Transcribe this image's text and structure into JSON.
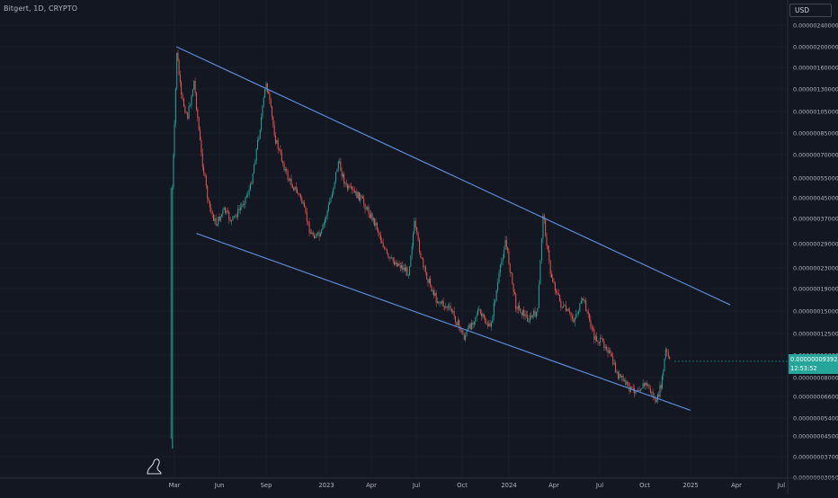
{
  "header": {
    "symbol_label": "Bitgert, 1D, CRYPTO",
    "currency_button": "USD"
  },
  "current_price": {
    "value": "0.000000093927",
    "countdown": "12:53:52",
    "color": "#26a69a"
  },
  "colors": {
    "background": "#131722",
    "up_candle": "#26a69a",
    "down_candle": "#ef5350",
    "trendline": "#5b8bd4",
    "grid": "#1e222d"
  },
  "chart_data": {
    "type": "candlestick",
    "title": "Bitgert, 1D, CRYPTO",
    "x_ticks": [
      "Mar",
      "Jun",
      "Sep",
      "2023",
      "Apr",
      "Jul",
      "Oct",
      "2024",
      "Apr",
      "Jul",
      "Oct",
      "2025",
      "Apr",
      "Jul"
    ],
    "y_ticks": [
      "0.000002400000",
      "0.000002000000",
      "0.000001600000",
      "0.000001300000",
      "0.000001050000",
      "0.000000850000",
      "0.000000700000",
      "0.000000550000",
      "0.000000450000",
      "0.000000370000",
      "0.000000290000",
      "0.000000230000",
      "0.000000190000",
      "0.000000150000",
      "0.000000125000",
      "0.000000100000",
      "0.000000080000",
      "0.000000066000",
      "0.000000054000",
      "0.000000045000",
      "0.000000037000",
      "0.000000030500"
    ],
    "y_scale": "log",
    "close_series": [
      {
        "x": "2022-02-22",
        "y": 4e-08
      },
      {
        "x": "2022-02-25",
        "y": 5e-07
      },
      {
        "x": "2022-03-01",
        "y": 9e-07
      },
      {
        "x": "2022-03-06",
        "y": 1.9e-06
      },
      {
        "x": "2022-03-15",
        "y": 1.2e-06
      },
      {
        "x": "2022-03-28",
        "y": 1e-06
      },
      {
        "x": "2022-04-10",
        "y": 1.4e-06
      },
      {
        "x": "2022-04-25",
        "y": 7e-07
      },
      {
        "x": "2022-05-10",
        "y": 4.2e-07
      },
      {
        "x": "2022-05-25",
        "y": 3.5e-07
      },
      {
        "x": "2022-06-10",
        "y": 4e-07
      },
      {
        "x": "2022-06-25",
        "y": 3.6e-07
      },
      {
        "x": "2022-07-10",
        "y": 4e-07
      },
      {
        "x": "2022-08-01",
        "y": 5e-07
      },
      {
        "x": "2022-08-20",
        "y": 9e-07
      },
      {
        "x": "2022-09-01",
        "y": 1.4e-06
      },
      {
        "x": "2022-09-20",
        "y": 8e-07
      },
      {
        "x": "2022-10-15",
        "y": 5.5e-07
      },
      {
        "x": "2022-11-10",
        "y": 4.5e-07
      },
      {
        "x": "2022-11-30",
        "y": 3.2e-07
      },
      {
        "x": "2022-12-20",
        "y": 3.1e-07
      },
      {
        "x": "2023-01-10",
        "y": 4.5e-07
      },
      {
        "x": "2023-01-25",
        "y": 6.5e-07
      },
      {
        "x": "2023-02-10",
        "y": 5e-07
      },
      {
        "x": "2023-03-10",
        "y": 4.5e-07
      },
      {
        "x": "2023-04-10",
        "y": 3.5e-07
      },
      {
        "x": "2023-05-05",
        "y": 2.5e-07
      },
      {
        "x": "2023-05-25",
        "y": 2.4e-07
      },
      {
        "x": "2023-06-15",
        "y": 2.2e-07
      },
      {
        "x": "2023-06-27",
        "y": 3.5e-07
      },
      {
        "x": "2023-07-15",
        "y": 2.3e-07
      },
      {
        "x": "2023-08-10",
        "y": 1.7e-07
      },
      {
        "x": "2023-09-10",
        "y": 1.5e-07
      },
      {
        "x": "2023-10-05",
        "y": 1.2e-07
      },
      {
        "x": "2023-11-01",
        "y": 1.5e-07
      },
      {
        "x": "2023-11-25",
        "y": 1.3e-07
      },
      {
        "x": "2023-12-10",
        "y": 2e-07
      },
      {
        "x": "2023-12-25",
        "y": 3e-07
      },
      {
        "x": "2024-01-15",
        "y": 1.6e-07
      },
      {
        "x": "2024-02-10",
        "y": 1.4e-07
      },
      {
        "x": "2024-02-28",
        "y": 1.5e-07
      },
      {
        "x": "2024-03-10",
        "y": 3.9e-07
      },
      {
        "x": "2024-03-25",
        "y": 2.2e-07
      },
      {
        "x": "2024-04-15",
        "y": 1.6e-07
      },
      {
        "x": "2024-05-10",
        "y": 1.4e-07
      },
      {
        "x": "2024-05-30",
        "y": 1.7e-07
      },
      {
        "x": "2024-06-20",
        "y": 1.2e-07
      },
      {
        "x": "2024-07-15",
        "y": 1.1e-07
      },
      {
        "x": "2024-08-05",
        "y": 8.3e-08
      },
      {
        "x": "2024-09-05",
        "y": 7e-08
      },
      {
        "x": "2024-10-05",
        "y": 7.5e-08
      },
      {
        "x": "2024-10-25",
        "y": 6.2e-08
      },
      {
        "x": "2024-11-05",
        "y": 7.8e-08
      },
      {
        "x": "2024-11-12",
        "y": 1.05e-07
      },
      {
        "x": "2024-11-20",
        "y": 9.4e-08
      }
    ],
    "trendlines": [
      {
        "name": "upper",
        "points": [
          {
            "x": "2022-03-05",
            "y": 2e-06
          },
          {
            "x": "2025-03-20",
            "y": 1.6e-07
          }
        ]
      },
      {
        "name": "lower",
        "points": [
          {
            "x": "2022-04-15",
            "y": 3.2e-07
          },
          {
            "x": "2025-01-01",
            "y": 5.8e-08
          }
        ]
      }
    ]
  }
}
